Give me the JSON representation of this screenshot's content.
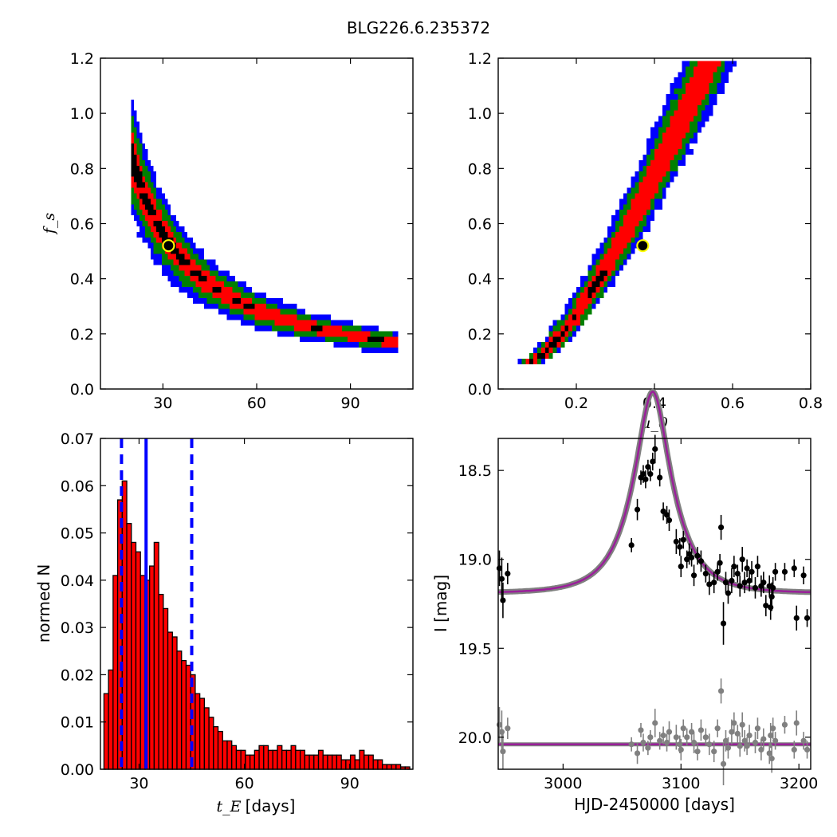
{
  "title": "BLG226.6.235372",
  "colors": {
    "sigma3": "#0000ff",
    "sigma2": "#008000",
    "sigma1": "#ff0000",
    "best": "#000000",
    "marker_fill": "#000000",
    "marker_ring": "#ffff00",
    "hist_bar": "#ff0000",
    "hist_line": "#0000ff",
    "data_top": "#000000",
    "data_bottom": "#808080",
    "model": "#9a1f9a",
    "model_band": "#808080"
  },
  "chart_data": [
    {
      "id": "tE_fs",
      "type": "heatmap",
      "ylabel": "f_s",
      "xlim": [
        10,
        110
      ],
      "ylim": [
        0.0,
        1.2
      ],
      "xticks": [
        "30",
        "60",
        "90"
      ],
      "yticks": [
        "0.0",
        "0.2",
        "0.4",
        "0.6",
        "0.8",
        "1.0",
        "1.2"
      ],
      "curve": "fs = 16.64 / tE",
      "tE_range": [
        20,
        105
      ],
      "best_fit": {
        "tE": 31.8,
        "fs": 0.52
      }
    },
    {
      "id": "u0_fs",
      "type": "heatmap",
      "xlabel": "u_0",
      "xlim": [
        0.0,
        0.8
      ],
      "ylim": [
        0.0,
        1.2
      ],
      "xticks": [
        "0.2",
        "0.4",
        "0.6",
        "0.8"
      ],
      "yticks": [
        "0.0",
        "0.2",
        "0.4",
        "0.6",
        "0.8",
        "1.0",
        "1.2"
      ],
      "u0_range": [
        0.09,
        0.67
      ],
      "best_fit": {
        "u0": 0.37,
        "fs": 0.52
      }
    },
    {
      "id": "tE_hist",
      "type": "bar",
      "xlabel": "t_E",
      "xlabel_unit": "[days]",
      "ylabel": "normed N",
      "xlim": [
        19,
        108
      ],
      "ylim": [
        0.0,
        0.07
      ],
      "xticks": [
        "30",
        "60",
        "90"
      ],
      "yticks": [
        "0.00",
        "0.01",
        "0.02",
        "0.03",
        "0.04",
        "0.05",
        "0.06",
        "0.07"
      ],
      "bin_start": 20,
      "bin_width": 1.3,
      "values": [
        0.016,
        0.021,
        0.041,
        0.057,
        0.061,
        0.052,
        0.048,
        0.046,
        0.041,
        0.04,
        0.043,
        0.048,
        0.037,
        0.034,
        0.029,
        0.028,
        0.025,
        0.023,
        0.022,
        0.02,
        0.016,
        0.015,
        0.013,
        0.011,
        0.009,
        0.008,
        0.006,
        0.006,
        0.005,
        0.004,
        0.004,
        0.003,
        0.003,
        0.004,
        0.005,
        0.005,
        0.004,
        0.004,
        0.005,
        0.004,
        0.004,
        0.005,
        0.004,
        0.004,
        0.003,
        0.003,
        0.003,
        0.004,
        0.003,
        0.003,
        0.003,
        0.003,
        0.002,
        0.002,
        0.003,
        0.002,
        0.004,
        0.003,
        0.003,
        0.002,
        0.002,
        0.001,
        0.001,
        0.001,
        0.001,
        0.0005,
        0.0005,
        0.0005
      ],
      "median": 32,
      "lower": 25,
      "upper": 45
    },
    {
      "id": "light_curve",
      "type": "scatter",
      "xlabel": "HJD-2450000 [days]",
      "ylabel": "I [mag]",
      "xlim": [
        2945,
        3210
      ],
      "ylim": [
        20.18,
        18.32
      ],
      "xticks": [
        "3000",
        "3100",
        "3200"
      ],
      "yticks": [
        "18.5",
        "19.0",
        "19.5",
        "20.0"
      ],
      "model": {
        "t0": 3076,
        "tE": 32,
        "u0": 0.37,
        "baseline": 19.19
      },
      "residual_baseline": 20.04,
      "points_top": [
        [
          2946,
          19.05,
          0.1
        ],
        [
          2948,
          19.11,
          0.12
        ],
        [
          2949,
          19.23,
          0.1
        ],
        [
          2953,
          19.08,
          0.06
        ],
        [
          3058,
          18.92,
          0.04
        ],
        [
          3063,
          18.72,
          0.06
        ],
        [
          3066,
          18.54,
          0.04
        ],
        [
          3068,
          18.52,
          0.05
        ],
        [
          3070,
          18.55,
          0.05
        ],
        [
          3072,
          18.48,
          0.04
        ],
        [
          3074,
          18.52,
          0.04
        ],
        [
          3076,
          18.45,
          0.05
        ],
        [
          3078,
          18.38,
          0.08
        ],
        [
          3082,
          18.54,
          0.05
        ],
        [
          3085,
          18.73,
          0.05
        ],
        [
          3088,
          18.75,
          0.05
        ],
        [
          3090,
          18.78,
          0.06
        ],
        [
          3096,
          18.9,
          0.07
        ],
        [
          3099,
          18.93,
          0.05
        ],
        [
          3100,
          19.04,
          0.06
        ],
        [
          3102,
          18.89,
          0.05
        ],
        [
          3105,
          19.0,
          0.05
        ],
        [
          3107,
          18.97,
          0.06
        ],
        [
          3109,
          18.99,
          0.05
        ],
        [
          3111,
          19.09,
          0.06
        ],
        [
          3114,
          18.98,
          0.05
        ],
        [
          3117,
          19.01,
          0.06
        ],
        [
          3121,
          19.08,
          0.05
        ],
        [
          3124,
          19.14,
          0.06
        ],
        [
          3128,
          19.13,
          0.06
        ],
        [
          3131,
          19.07,
          0.05
        ],
        [
          3133,
          19.02,
          0.05
        ],
        [
          3134,
          18.82,
          0.07
        ],
        [
          3136,
          19.36,
          0.12
        ],
        [
          3138,
          19.13,
          0.06
        ],
        [
          3140,
          19.19,
          0.06
        ],
        [
          3143,
          19.12,
          0.07
        ],
        [
          3145,
          19.04,
          0.06
        ],
        [
          3148,
          19.08,
          0.05
        ],
        [
          3150,
          19.15,
          0.06
        ],
        [
          3152,
          19.0,
          0.07
        ],
        [
          3154,
          19.13,
          0.06
        ],
        [
          3156,
          19.05,
          0.05
        ],
        [
          3158,
          19.12,
          0.06
        ],
        [
          3160,
          19.07,
          0.06
        ],
        [
          3163,
          19.16,
          0.06
        ],
        [
          3165,
          19.04,
          0.06
        ],
        [
          3168,
          19.15,
          0.06
        ],
        [
          3170,
          19.13,
          0.06
        ],
        [
          3172,
          19.26,
          0.06
        ],
        [
          3175,
          19.15,
          0.06
        ],
        [
          3176,
          19.27,
          0.07
        ],
        [
          3177,
          19.21,
          0.08
        ],
        [
          3178,
          19.16,
          0.06
        ],
        [
          3180,
          19.07,
          0.05
        ],
        [
          3188,
          19.07,
          0.05
        ],
        [
          3196,
          19.05,
          0.05
        ],
        [
          3198,
          19.33,
          0.07
        ],
        [
          3204,
          19.09,
          0.05
        ],
        [
          3207,
          19.33,
          0.05
        ]
      ],
      "points_bottom": [
        [
          2946,
          19.93,
          0.1
        ],
        [
          2948,
          19.97,
          0.12
        ],
        [
          2949,
          20.08,
          0.1
        ],
        [
          2953,
          19.95,
          0.06
        ],
        [
          3058,
          20.04,
          0.04
        ],
        [
          3063,
          20.09,
          0.06
        ],
        [
          3066,
          19.96,
          0.04
        ],
        [
          3068,
          20.03,
          0.05
        ],
        [
          3072,
          20.06,
          0.04
        ],
        [
          3074,
          20.0,
          0.04
        ],
        [
          3078,
          19.92,
          0.08
        ],
        [
          3082,
          20.02,
          0.05
        ],
        [
          3085,
          19.99,
          0.05
        ],
        [
          3088,
          20.03,
          0.05
        ],
        [
          3090,
          19.97,
          0.06
        ],
        [
          3096,
          20.0,
          0.07
        ],
        [
          3099,
          20.04,
          0.05
        ],
        [
          3100,
          20.07,
          0.06
        ],
        [
          3102,
          19.95,
          0.05
        ],
        [
          3105,
          20.0,
          0.05
        ],
        [
          3109,
          19.97,
          0.05
        ],
        [
          3111,
          20.03,
          0.06
        ],
        [
          3114,
          20.08,
          0.05
        ],
        [
          3117,
          19.96,
          0.06
        ],
        [
          3121,
          20.0,
          0.05
        ],
        [
          3124,
          20.04,
          0.06
        ],
        [
          3128,
          20.08,
          0.06
        ],
        [
          3131,
          19.95,
          0.05
        ],
        [
          3134,
          19.74,
          0.07
        ],
        [
          3136,
          20.15,
          0.12
        ],
        [
          3138,
          20.02,
          0.06
        ],
        [
          3140,
          20.06,
          0.06
        ],
        [
          3143,
          19.97,
          0.07
        ],
        [
          3145,
          19.92,
          0.06
        ],
        [
          3148,
          19.98,
          0.05
        ],
        [
          3150,
          20.05,
          0.06
        ],
        [
          3152,
          19.93,
          0.07
        ],
        [
          3154,
          20.02,
          0.06
        ],
        [
          3156,
          20.05,
          0.05
        ],
        [
          3158,
          19.99,
          0.06
        ],
        [
          3163,
          20.03,
          0.06
        ],
        [
          3165,
          19.95,
          0.06
        ],
        [
          3168,
          20.07,
          0.06
        ],
        [
          3170,
          20.01,
          0.06
        ],
        [
          3175,
          20.09,
          0.06
        ],
        [
          3176,
          19.99,
          0.07
        ],
        [
          3177,
          20.12,
          0.08
        ],
        [
          3178,
          19.95,
          0.06
        ],
        [
          3180,
          20.02,
          0.05
        ],
        [
          3188,
          19.93,
          0.05
        ],
        [
          3196,
          20.07,
          0.05
        ],
        [
          3198,
          19.92,
          0.07
        ],
        [
          3204,
          20.02,
          0.05
        ],
        [
          3207,
          20.07,
          0.05
        ]
      ]
    }
  ]
}
